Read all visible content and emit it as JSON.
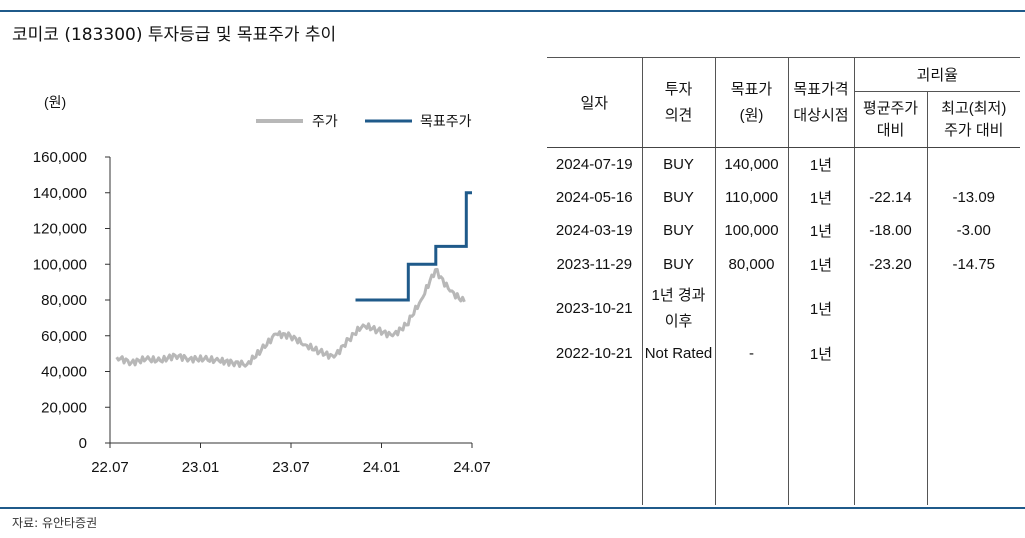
{
  "title": "코미코 (183300) 투자등급 및 목표주가 추이",
  "source": "자료: 유안타증권",
  "colors": {
    "rule": "#1f5a8a",
    "price": "#b8b8b8",
    "target": "#1f5a8a"
  },
  "chart_data": {
    "type": "line",
    "unit": "(원)",
    "ylim": [
      0,
      160000
    ],
    "yticks": [
      "160,000",
      "140,000",
      "120,000",
      "100,000",
      "80,000",
      "60,000",
      "40,000",
      "20,000",
      "0"
    ],
    "xticks": [
      "22.07",
      "23.01",
      "23.07",
      "24.01",
      "24.07"
    ],
    "legend": [
      "주가",
      "목표주가"
    ],
    "legend_position": "top-right",
    "grid": false,
    "series": [
      {
        "name": "주가",
        "x": [
          "2022-07",
          "2022-08",
          "2022-09",
          "2022-10",
          "2022-11",
          "2022-12",
          "2023-01",
          "2023-02",
          "2023-03",
          "2023-04",
          "2023-05",
          "2023-06",
          "2023-07",
          "2023-08",
          "2023-09",
          "2023-10",
          "2023-11",
          "2023-12",
          "2024-01",
          "2024-02",
          "2024-03",
          "2024-04",
          "2024-05",
          "2024-06",
          "2024-07"
        ],
        "values": [
          48000,
          45000,
          47000,
          46000,
          49000,
          47000,
          47000,
          46000,
          45000,
          44000,
          52000,
          61000,
          60000,
          55000,
          51000,
          48000,
          58000,
          66000,
          63000,
          60000,
          66000,
          80000,
          97000,
          85000,
          79000
        ]
      },
      {
        "name": "목표주가",
        "x": [
          "2023-11-29",
          "2024-03-19",
          "2024-03-19",
          "2024-05-16",
          "2024-05-16",
          "2024-07-19",
          "2024-07-19",
          "2024-07-31"
        ],
        "values": [
          80000,
          80000,
          100000,
          100000,
          110000,
          110000,
          140000,
          140000
        ]
      }
    ]
  },
  "table": {
    "headers": {
      "date": "일자",
      "opinion": [
        "투자",
        "의견"
      ],
      "target": [
        "목표가",
        "(원)"
      ],
      "period": [
        "목표가격",
        "대상시점"
      ],
      "gap": "괴리율",
      "avg": [
        "평균주가",
        "대비"
      ],
      "hilo": [
        "최고(최저)",
        "주가 대비"
      ]
    },
    "rows": [
      {
        "date": "2024-07-19",
        "opinion": "BUY",
        "target": "140,000",
        "period": "1년",
        "avg": "",
        "hilo": ""
      },
      {
        "date": "2024-05-16",
        "opinion": "BUY",
        "target": "110,000",
        "period": "1년",
        "avg": "-22.14",
        "hilo": "-13.09"
      },
      {
        "date": "2024-03-19",
        "opinion": "BUY",
        "target": "100,000",
        "period": "1년",
        "avg": "-18.00",
        "hilo": "-3.00"
      },
      {
        "date": "2023-11-29",
        "opinion": "BUY",
        "target": "80,000",
        "period": "1년",
        "avg": "-23.20",
        "hilo": "-14.75"
      },
      {
        "date": "2023-10-21",
        "opinion": [
          "1년 경과",
          "이후"
        ],
        "target": "",
        "period": "1년",
        "avg": "",
        "hilo": ""
      },
      {
        "date": "2022-10-21",
        "opinion": "Not Rated",
        "target": "-",
        "period": "1년",
        "avg": "",
        "hilo": ""
      }
    ]
  }
}
